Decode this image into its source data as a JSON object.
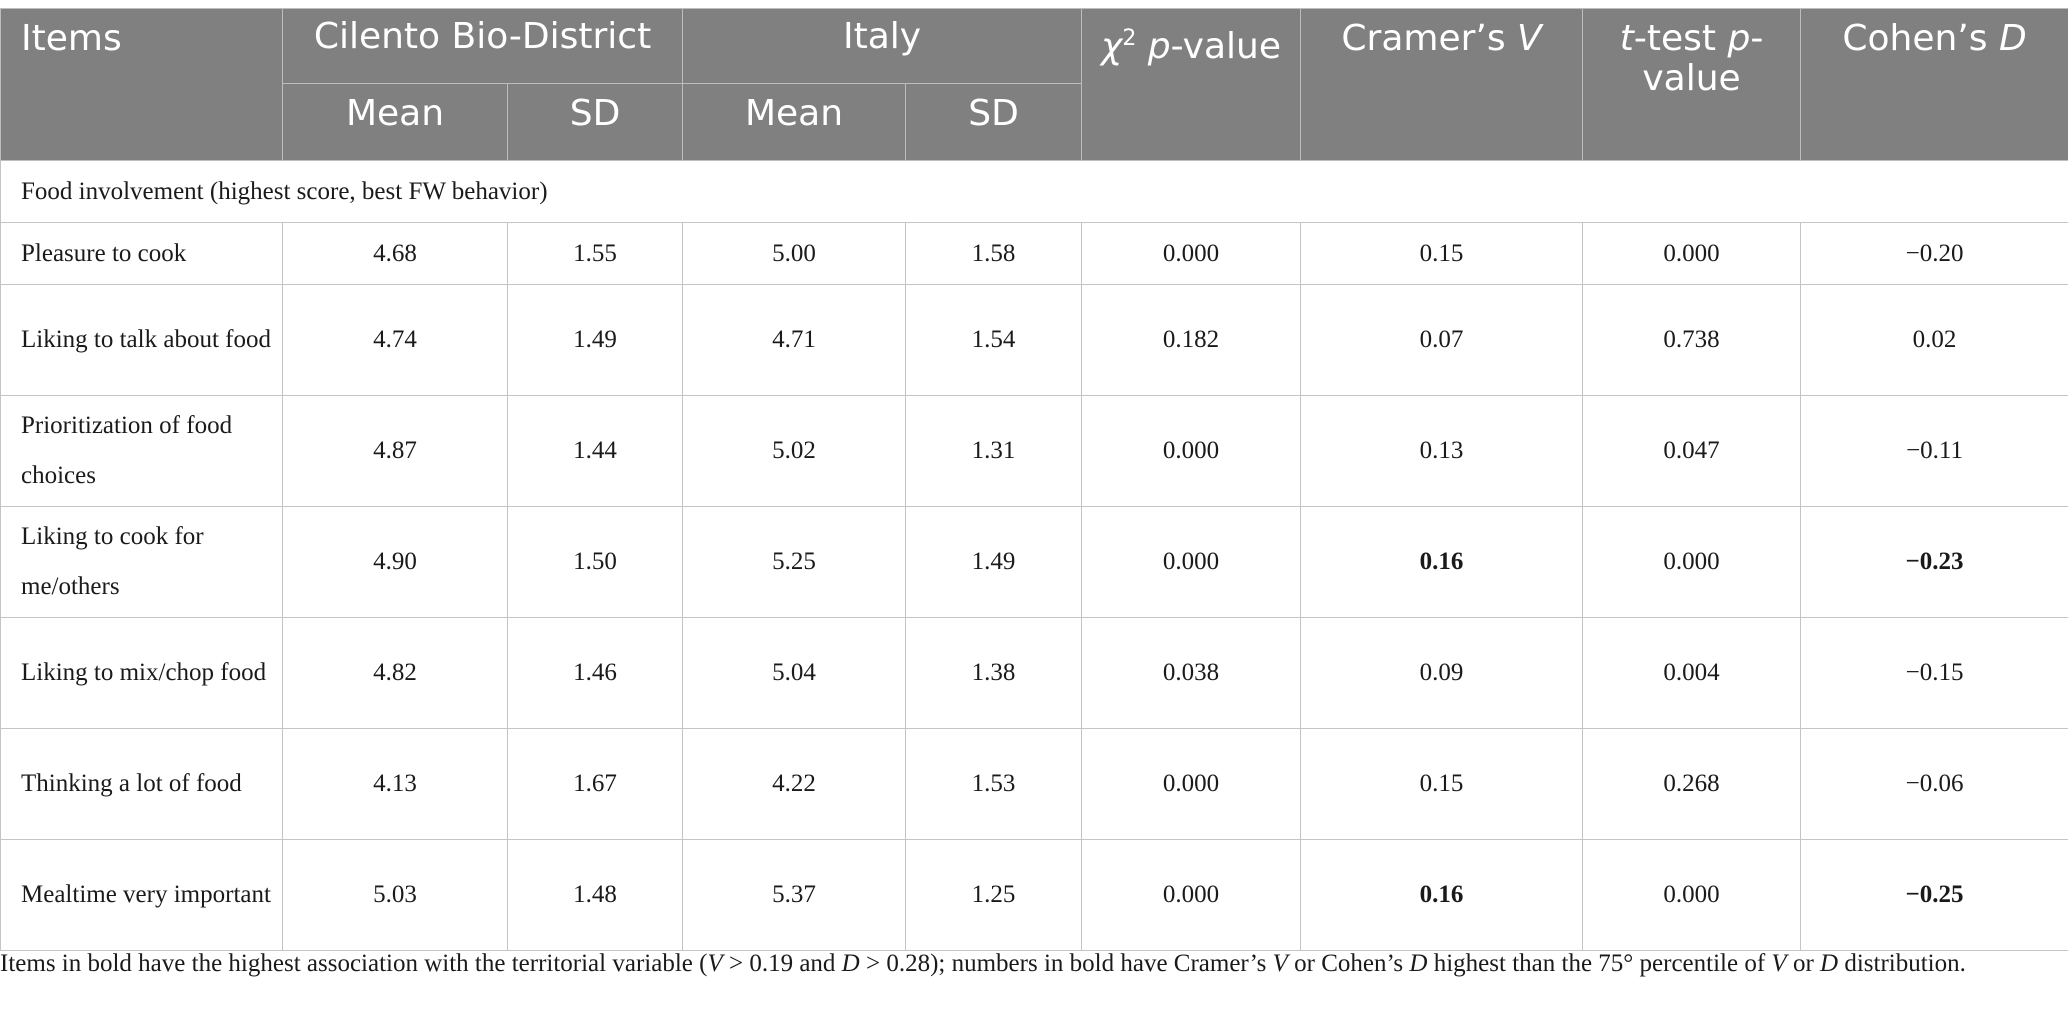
{
  "header": {
    "items": "Items",
    "group_a": "Cilento Bio-District",
    "group_b": "Italy",
    "mean": "Mean",
    "sd": "SD",
    "chi_symbol": "χ",
    "chi_sup": "2",
    "chi_rest": "p-value",
    "cramer_text": "Cramer’s ",
    "cramer_var": "V",
    "ttest_var": "t",
    "ttest_text": "-test ",
    "ttest_p": "p",
    "ttest_rest": "-value",
    "cohen_text": "Cohen’s ",
    "cohen_var": "D"
  },
  "section_label": "Food involvement (highest score, best FW behavior)",
  "rows": [
    {
      "item": "Pleasure to cook",
      "a_mean": "4.68",
      "a_sd": "1.55",
      "b_mean": "5.00",
      "b_sd": "1.58",
      "chi_p": "0.000",
      "cramer_v": "0.15",
      "t_p": "0.000",
      "cohen_d": "−0.20",
      "v_bold": false,
      "d_bold": false
    },
    {
      "item": "Liking to talk about food",
      "a_mean": "4.74",
      "a_sd": "1.49",
      "b_mean": "4.71",
      "b_sd": "1.54",
      "chi_p": "0.182",
      "cramer_v": "0.07",
      "t_p": "0.738",
      "cohen_d": "0.02",
      "v_bold": false,
      "d_bold": false
    },
    {
      "item": "Prioritization of food choices",
      "a_mean": "4.87",
      "a_sd": "1.44",
      "b_mean": "5.02",
      "b_sd": "1.31",
      "chi_p": "0.000",
      "cramer_v": "0.13",
      "t_p": "0.047",
      "cohen_d": "−0.11",
      "v_bold": false,
      "d_bold": false
    },
    {
      "item": "Liking to cook for me/others",
      "a_mean": "4.90",
      "a_sd": "1.50",
      "b_mean": "5.25",
      "b_sd": "1.49",
      "chi_p": "0.000",
      "cramer_v": "0.16",
      "t_p": "0.000",
      "cohen_d": "−0.23",
      "v_bold": true,
      "d_bold": true
    },
    {
      "item": "Liking to mix/chop food",
      "a_mean": "4.82",
      "a_sd": "1.46",
      "b_mean": "5.04",
      "b_sd": "1.38",
      "chi_p": "0.038",
      "cramer_v": "0.09",
      "t_p": "0.004",
      "cohen_d": "−0.15",
      "v_bold": false,
      "d_bold": false
    },
    {
      "item": "Thinking a lot of food",
      "a_mean": "4.13",
      "a_sd": "1.67",
      "b_mean": "4.22",
      "b_sd": "1.53",
      "chi_p": "0.000",
      "cramer_v": "0.15",
      "t_p": "0.268",
      "cohen_d": "−0.06",
      "v_bold": false,
      "d_bold": false
    },
    {
      "item": "Mealtime very important",
      "a_mean": "5.03",
      "a_sd": "1.48",
      "b_mean": "5.37",
      "b_sd": "1.25",
      "chi_p": "0.000",
      "cramer_v": "0.16",
      "t_p": "0.000",
      "cohen_d": "−0.25",
      "v_bold": true,
      "d_bold": true
    }
  ],
  "footnote": {
    "p1": "Items in bold have the highest association with the territorial variable (",
    "v1": "V",
    "p2": " > 0.19 and ",
    "d1": "D",
    "p3": " > 0.28); numbers in bold have Cramer’s ",
    "v2": "V",
    "p4": " or Cohen’s ",
    "d2": "D",
    "p5": " highest than the 75° percentile of ",
    "v3": "V",
    "p6": " or ",
    "d3": "D",
    "p7": " distribution."
  }
}
